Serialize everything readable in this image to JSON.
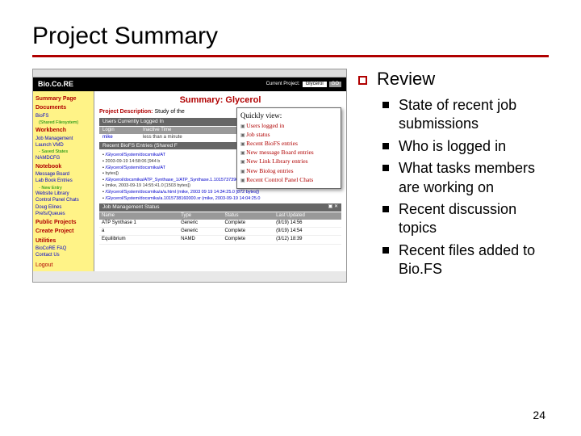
{
  "slide": {
    "title": "Project Summary",
    "page_number": "24"
  },
  "review": {
    "heading": "Review",
    "items": [
      "State of recent job submissions",
      "Who is logged in",
      "What tasks members are working on",
      "Recent discussion topics",
      "Recent files added to Bio.FS"
    ]
  },
  "screenshot": {
    "app_name": "Bio.Co.RE",
    "current_project_label": "Current Project:",
    "current_project": "Glycerol",
    "go_label": "GO",
    "main_title": "Summary: Glycerol",
    "project_desc_label": "Project Description:",
    "project_desc_value": "Study of the",
    "sidebar": {
      "summary": "Summary Page",
      "documents": "Documents",
      "biofs": "BioFS",
      "biofs_sub": "(Shared Filesystem)",
      "workbench": "Workbench",
      "job_mgmt": "Job Management",
      "launch_vmd": "Launch VMD",
      "saved_states": "- Saved States",
      "namdcfg": "NAMDCFG",
      "notebook": "Notebook",
      "msg_board": "Message Board",
      "lab_book": "Lab Book Entries",
      "new_entry": "- New Entry",
      "web_lib": "Website Library",
      "cp_chats": "Control Panel Chats",
      "doug": "Doug Elines",
      "prefs": "Prefs/Queues",
      "public": "Public Projects",
      "create": "Create Project",
      "utilities": "Utilities",
      "faq": "BioCoRE FAQ",
      "contact": "Contact Us",
      "logout": "Logout"
    },
    "users_bar": "Users Currently Logged In",
    "users_head_login": "Login",
    "users_head_inactive": "Inactive Time",
    "user_login": "mike",
    "user_inactive": "less than a minute",
    "biofs_bar": "Recent BioFS Entries (Shared F",
    "files": [
      "/Glycerol/System/docsmika/AT",
      "2003-09-19 14:58:06 [944 b",
      "/Glycerol/System/docsmika/AT",
      "bytes])",
      "/Glycerol/docsmika/ATP_Synthase_1/ATP_Synthase.1.1015737390000.cor",
      "(mike, 2003-09-19 14:55:41.0 [1503 bytes])",
      "/Glycerol/System/docsmika/a/a.html (mike, 2003 09 19 14:34:25.0 [872 bytes])",
      "/Glycerol/System/docsmika/a.1015738160000.xr (mike, 2003-09-19 14:04:25.0"
    ],
    "jobs_bar": "Job Management Status",
    "jobs_cols": [
      "Name",
      "Type",
      "Status",
      "Last Updated"
    ],
    "jobs_rows": [
      [
        "ATP Synthase 1",
        "Generic",
        "Complete",
        "(9/19) 14:56"
      ],
      [
        "a",
        "Generic",
        "Complete",
        "(9/19) 14:54"
      ],
      [
        "Equilibrium",
        "NAMD",
        "Complete",
        "(3/12) 18:39"
      ]
    ],
    "quickview": {
      "title": "Quickly view:",
      "items": [
        "Users logged in",
        "Job status",
        "Recent BioFS entries",
        "New message Board entries",
        "New Link Library entries",
        "New Biolog entries",
        "Recent Control Panel Chats"
      ]
    }
  },
  "colors": {
    "accent_red": "#b00000",
    "sidebar_bg": "#fff387",
    "link_blue": "#0000cc"
  }
}
